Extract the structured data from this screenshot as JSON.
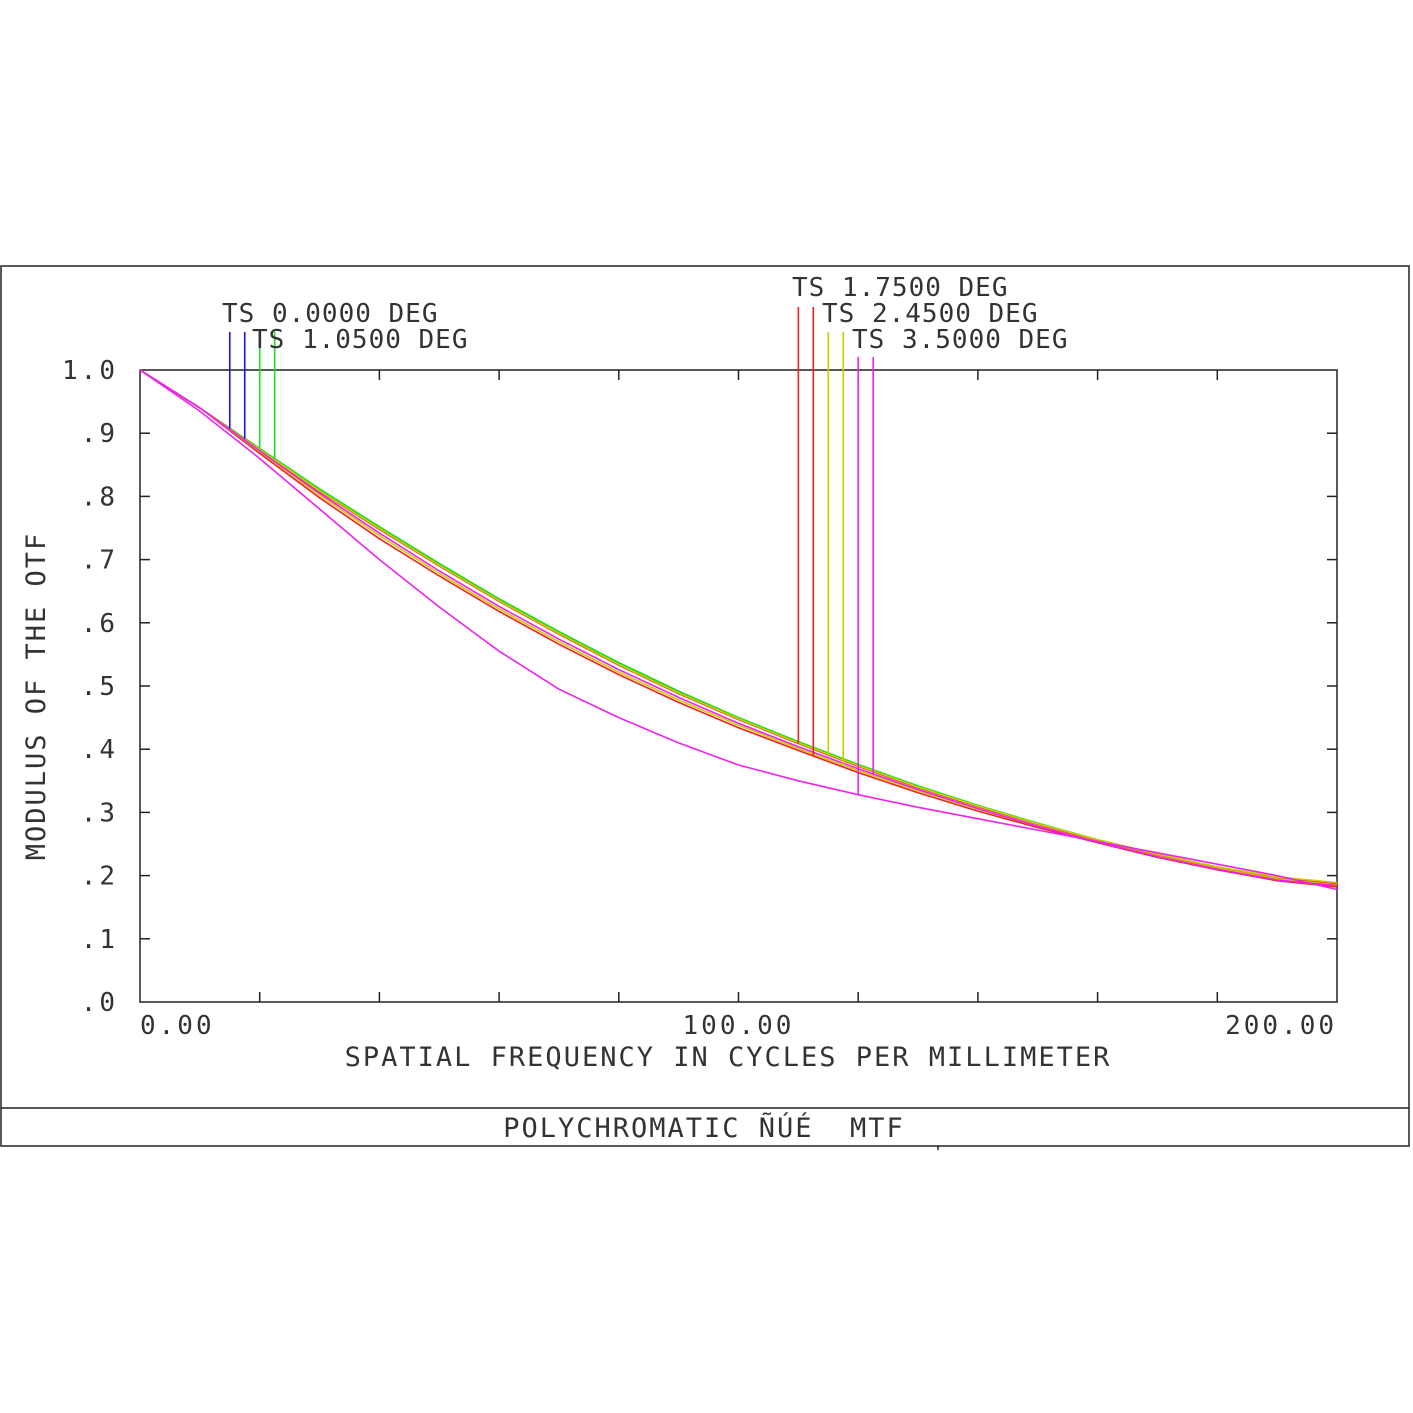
{
  "chart_data": {
    "type": "line",
    "title": "POLYCHROMATIC ÑÚÉ  MTF",
    "xlabel": "SPATIAL FREQUENCY IN CYCLES PER MILLIMETER",
    "ylabel": "MODULUS OF THE OTF",
    "xlim": [
      0,
      200
    ],
    "ylim": [
      0,
      1
    ],
    "x_tick_labels": [
      "0.00",
      "100.00",
      "200.00"
    ],
    "y_tick_labels": [
      ".0",
      ".1",
      ".2",
      ".3",
      ".4",
      ".5",
      ".6",
      ".7",
      ".8",
      ".9",
      "1.0"
    ],
    "grid": false,
    "x": [
      0,
      10,
      20,
      30,
      40,
      50,
      60,
      70,
      80,
      90,
      100,
      110,
      120,
      130,
      140,
      150,
      160,
      170,
      180,
      190,
      200
    ],
    "legend": [
      {
        "label": "TS 0.0000 DEG",
        "color": "#1a1acc",
        "x_t": 15,
        "x_s": 17.5
      },
      {
        "label": "TS 1.0500 DEG",
        "color": "#22dd22",
        "x_t": 20,
        "x_s": 22.5
      },
      {
        "label": "TS 1.7500 DEG",
        "color": "#ee2222",
        "x_t": 110,
        "x_s": 112.5
      },
      {
        "label": "TS 2.4500 DEG",
        "color": "#cccc00",
        "x_t": 115,
        "x_s": 117.5
      },
      {
        "label": "TS 3.5000 DEG",
        "color": "#ee22ee",
        "x_t": 120,
        "x_s": 122.5
      }
    ],
    "series": [
      {
        "name": "TS 0.0000 DEG T",
        "color": "#1a1acc",
        "values": [
          1.0,
          0.94,
          0.875,
          0.81,
          0.75,
          0.692,
          0.636,
          0.584,
          0.535,
          0.49,
          0.449,
          0.41,
          0.374,
          0.34,
          0.31,
          0.282,
          0.256,
          0.232,
          0.212,
          0.196,
          0.186
        ]
      },
      {
        "name": "TS 0.0000 DEG S",
        "color": "#1a1acc",
        "values": [
          1.0,
          0.94,
          0.875,
          0.81,
          0.75,
          0.692,
          0.636,
          0.584,
          0.535,
          0.49,
          0.449,
          0.41,
          0.374,
          0.34,
          0.31,
          0.282,
          0.256,
          0.232,
          0.212,
          0.196,
          0.186
        ]
      },
      {
        "name": "TS 1.0500 DEG T",
        "color": "#22dd22",
        "values": [
          1.0,
          0.94,
          0.876,
          0.812,
          0.752,
          0.694,
          0.638,
          0.586,
          0.537,
          0.492,
          0.45,
          0.412,
          0.376,
          0.342,
          0.311,
          0.283,
          0.257,
          0.234,
          0.213,
          0.197,
          0.187
        ]
      },
      {
        "name": "TS 1.0500 DEG S",
        "color": "#22dd22",
        "values": [
          1.0,
          0.94,
          0.875,
          0.81,
          0.751,
          0.693,
          0.637,
          0.585,
          0.536,
          0.491,
          0.45,
          0.411,
          0.375,
          0.341,
          0.31,
          0.282,
          0.256,
          0.233,
          0.212,
          0.196,
          0.186
        ]
      },
      {
        "name": "TS 1.7500 DEG T",
        "color": "#ee2222",
        "values": [
          1.0,
          0.94,
          0.874,
          0.808,
          0.748,
          0.69,
          0.634,
          0.582,
          0.533,
          0.488,
          0.447,
          0.409,
          0.373,
          0.339,
          0.309,
          0.281,
          0.256,
          0.232,
          0.212,
          0.196,
          0.187
        ]
      },
      {
        "name": "TS 1.7500 DEG S",
        "color": "#ee2222",
        "values": [
          1.0,
          0.94,
          0.868,
          0.798,
          0.733,
          0.674,
          0.618,
          0.566,
          0.518,
          0.474,
          0.434,
          0.398,
          0.363,
          0.331,
          0.302,
          0.276,
          0.252,
          0.229,
          0.209,
          0.192,
          0.182
        ]
      },
      {
        "name": "TS 2.4500 DEG T",
        "color": "#cccc00",
        "values": [
          1.0,
          0.94,
          0.874,
          0.809,
          0.749,
          0.691,
          0.635,
          0.583,
          0.534,
          0.489,
          0.448,
          0.41,
          0.374,
          0.34,
          0.31,
          0.282,
          0.257,
          0.234,
          0.214,
          0.198,
          0.189
        ]
      },
      {
        "name": "TS 2.4500 DEG S",
        "color": "#cccc00",
        "values": [
          1.0,
          0.94,
          0.871,
          0.802,
          0.738,
          0.678,
          0.622,
          0.57,
          0.522,
          0.478,
          0.438,
          0.401,
          0.366,
          0.334,
          0.305,
          0.278,
          0.254,
          0.231,
          0.211,
          0.195,
          0.185
        ]
      },
      {
        "name": "TS 3.5000 DEG T",
        "color": "#ee22ee",
        "values": [
          1.0,
          0.935,
          0.86,
          0.78,
          0.7,
          0.625,
          0.555,
          0.495,
          0.45,
          0.41,
          0.375,
          0.35,
          0.328,
          0.308,
          0.29,
          0.272,
          0.254,
          0.236,
          0.218,
          0.2,
          0.178
        ]
      },
      {
        "name": "TS 3.5000 DEG S",
        "color": "#ee22ee",
        "values": [
          1.0,
          0.94,
          0.872,
          0.805,
          0.742,
          0.682,
          0.626,
          0.574,
          0.526,
          0.482,
          0.441,
          0.404,
          0.369,
          0.336,
          0.306,
          0.278,
          0.253,
          0.23,
          0.21,
          0.193,
          0.184
        ]
      }
    ]
  }
}
